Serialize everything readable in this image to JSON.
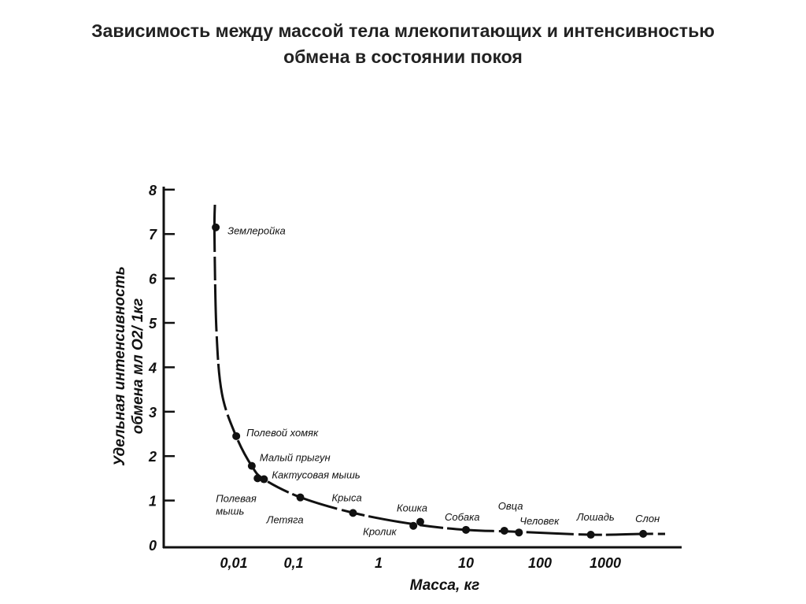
{
  "title_line1": "Зависимость между массой тела млекопитающих и интенсивностью",
  "title_line2": "обмена в состоянии покоя",
  "chart_data": {
    "type": "scatter",
    "title": "Зависимость между массой тела млекопитающих и интенсивностью обмена в состоянии покоя",
    "xlabel": "Масса, кг",
    "ylabel": [
      "Удельная интенсивность",
      "обмена мл О2/ 1кг"
    ],
    "x_scale": "log",
    "x_ticks": [
      {
        "value": 0.01,
        "label": "0,01"
      },
      {
        "value": 0.1,
        "label": "0,1"
      },
      {
        "value": 1,
        "label": "1"
      },
      {
        "value": 10,
        "label": "10"
      },
      {
        "value": 100,
        "label": "100"
      },
      {
        "value": 1000,
        "label": "1000"
      }
    ],
    "y_ticks": [
      0,
      1,
      2,
      3,
      4,
      5,
      6,
      7,
      8
    ],
    "ylim": [
      0,
      8
    ],
    "grid": false,
    "fitted_curve": true,
    "points": [
      {
        "label": "Землеройка",
        "x": 0.005,
        "y": 7.15
      },
      {
        "label": "Полевой хомяк",
        "x": 0.011,
        "y": 2.45
      },
      {
        "label": "Малый прыгун",
        "x": 0.02,
        "y": 1.78
      },
      {
        "label": "Полевая мышь",
        "x": 0.025,
        "y": 1.5
      },
      {
        "label": "Кактусовая мышь",
        "x": 0.032,
        "y": 1.48
      },
      {
        "label": "Летяга",
        "x": 0.12,
        "y": 1.07
      },
      {
        "label": "Крыса",
        "x": 0.5,
        "y": 0.72
      },
      {
        "label": "Кролик",
        "x": 2.5,
        "y": 0.43
      },
      {
        "label": "Кошка",
        "x": 3,
        "y": 0.52
      },
      {
        "label": "Собака",
        "x": 10,
        "y": 0.34
      },
      {
        "label": "Овца",
        "x": 33,
        "y": 0.32
      },
      {
        "label": "Человек",
        "x": 52,
        "y": 0.28
      },
      {
        "label": "Лошадь",
        "x": 600,
        "y": 0.23
      },
      {
        "label": "Слон",
        "x": 3800,
        "y": 0.25
      }
    ]
  }
}
